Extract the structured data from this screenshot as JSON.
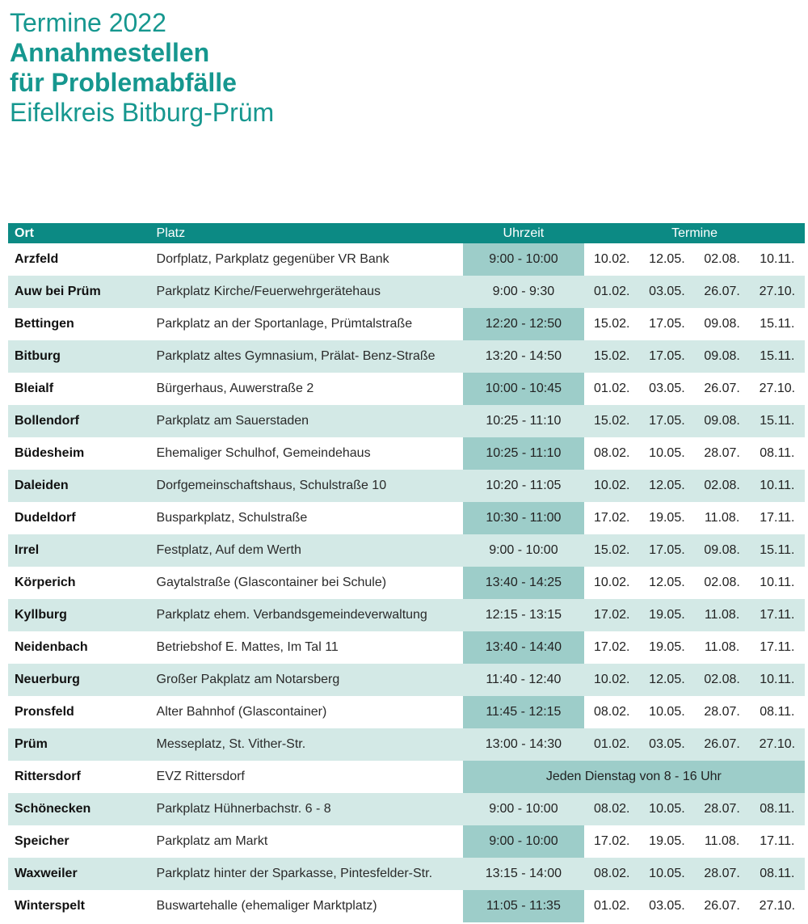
{
  "header": {
    "line1": "Termine 2022",
    "line2": "Annahmestellen",
    "line3": "für Problemabfälle",
    "line4": "Eifelkreis Bitburg-Prüm"
  },
  "colors": {
    "header_bg": "#0c8a84",
    "title": "#16978f",
    "row_alt": "#d3e9e6",
    "time_highlight": "#9dcdc9"
  },
  "table": {
    "columns": {
      "ort": "Ort",
      "platz": "Platz",
      "uhrzeit": "Uhrzeit",
      "termine": "Termine"
    },
    "rows": [
      {
        "ort": "Arzfeld",
        "platz": "Dorfplatz, Parkplatz gegenüber VR Bank",
        "uhrzeit": "9:00 - 10:00",
        "dates": [
          "10.02.",
          "12.05.",
          "02.08.",
          "10.11."
        ]
      },
      {
        "ort": "Auw bei Prüm",
        "platz": "Parkplatz Kirche/Feuerwehrgerätehaus",
        "uhrzeit": "9:00 - 9:30",
        "dates": [
          "01.02.",
          "03.05.",
          "26.07.",
          "27.10."
        ]
      },
      {
        "ort": "Bettingen",
        "platz": "Parkplatz an der Sportanlage, Prümtalstraße",
        "uhrzeit": "12:20 - 12:50",
        "dates": [
          "15.02.",
          "17.05.",
          "09.08.",
          "15.11."
        ]
      },
      {
        "ort": "Bitburg",
        "platz": "Parkplatz altes Gymnasium, Prälat- Benz-Straße",
        "uhrzeit": "13:20 - 14:50",
        "dates": [
          "15.02.",
          "17.05.",
          "09.08.",
          "15.11."
        ]
      },
      {
        "ort": "Bleialf",
        "platz": "Bürgerhaus, Auwerstraße 2",
        "uhrzeit": "10:00 - 10:45",
        "dates": [
          "01.02.",
          "03.05.",
          "26.07.",
          "27.10."
        ]
      },
      {
        "ort": "Bollendorf",
        "platz": "Parkplatz am Sauerstaden",
        "uhrzeit": "10:25 - 11:10",
        "dates": [
          "15.02.",
          "17.05.",
          "09.08.",
          "15.11."
        ]
      },
      {
        "ort": "Büdesheim",
        "platz": "Ehemaliger Schulhof, Gemeindehaus",
        "uhrzeit": "10:25 - 11:10",
        "dates": [
          "08.02.",
          "10.05.",
          "28.07.",
          "08.11."
        ]
      },
      {
        "ort": "Daleiden",
        "platz": "Dorfgemeinschaftshaus, Schulstraße 10",
        "uhrzeit": "10:20 - 11:05",
        "dates": [
          "10.02.",
          "12.05.",
          "02.08.",
          "10.11."
        ]
      },
      {
        "ort": "Dudeldorf",
        "platz": "Busparkplatz, Schulstraße",
        "uhrzeit": "10:30 - 11:00",
        "dates": [
          "17.02.",
          "19.05.",
          "11.08.",
          "17.11."
        ]
      },
      {
        "ort": "Irrel",
        "platz": "Festplatz, Auf dem Werth",
        "uhrzeit": "9:00 - 10:00",
        "dates": [
          "15.02.",
          "17.05.",
          "09.08.",
          "15.11."
        ]
      },
      {
        "ort": "Körperich",
        "platz": "Gaytalstraße (Glascontainer bei Schule)",
        "uhrzeit": "13:40 - 14:25",
        "dates": [
          "10.02.",
          "12.05.",
          "02.08.",
          "10.11."
        ]
      },
      {
        "ort": "Kyllburg",
        "platz": "Parkplatz ehem. Verbandsgemeindeverwaltung",
        "uhrzeit": "12:15 - 13:15",
        "dates": [
          "17.02.",
          "19.05.",
          "11.08.",
          "17.11."
        ]
      },
      {
        "ort": "Neidenbach",
        "platz": "Betriebshof E. Mattes, Im Tal 11",
        "uhrzeit": "13:40 - 14:40",
        "dates": [
          "17.02.",
          "19.05.",
          "11.08.",
          "17.11."
        ]
      },
      {
        "ort": "Neuerburg",
        "platz": "Großer Pakplatz am Notarsberg",
        "uhrzeit": "11:40 - 12:40",
        "dates": [
          "10.02.",
          "12.05.",
          "02.08.",
          "10.11."
        ]
      },
      {
        "ort": "Pronsfeld",
        "platz": "Alter Bahnhof (Glascontainer)",
        "uhrzeit": "11:45 - 12:15",
        "dates": [
          "08.02.",
          "10.05.",
          "28.07.",
          "08.11."
        ]
      },
      {
        "ort": "Prüm",
        "platz": "Messeplatz, St. Vither-Str.",
        "uhrzeit": "13:00 - 14:30",
        "dates": [
          "01.02.",
          "03.05.",
          "26.07.",
          "27.10."
        ]
      },
      {
        "ort": "Rittersdorf",
        "platz": "EVZ Rittersdorf",
        "special": "Jeden Dienstag von 8 - 16 Uhr"
      },
      {
        "ort": "Schönecken",
        "platz": "Parkplatz Hühnerbachstr. 6 - 8",
        "uhrzeit": "9:00 - 10:00",
        "dates": [
          "08.02.",
          "10.05.",
          "28.07.",
          "08.11."
        ]
      },
      {
        "ort": "Speicher",
        "platz": "Parkplatz am Markt",
        "uhrzeit": "9:00 - 10:00",
        "dates": [
          "17.02.",
          "19.05.",
          "11.08.",
          "17.11."
        ]
      },
      {
        "ort": "Waxweiler",
        "platz": "Parkplatz hinter der Sparkasse, Pintesfelder-Str.",
        "uhrzeit": "13:15 - 14:00",
        "dates": [
          "08.02.",
          "10.05.",
          "28.07.",
          "08.11."
        ]
      },
      {
        "ort": "Winterspelt",
        "platz": "Buswartehalle (ehemaliger Marktplatz)",
        "uhrzeit": "11:05 - 11:35",
        "dates": [
          "01.02.",
          "03.05.",
          "26.07.",
          "27.10."
        ]
      }
    ]
  }
}
